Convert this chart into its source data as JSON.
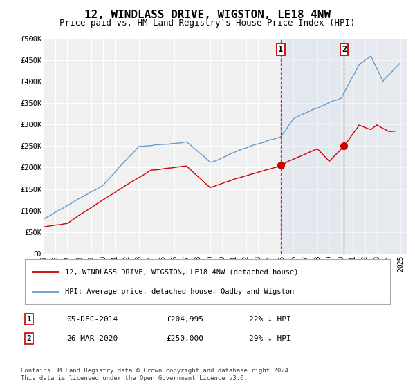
{
  "title": "12, WINDLASS DRIVE, WIGSTON, LE18 4NW",
  "subtitle": "Price paid vs. HM Land Registry's House Price Index (HPI)",
  "title_fontsize": 11.5,
  "subtitle_fontsize": 9,
  "ylabel_ticks": [
    "£0",
    "£50K",
    "£100K",
    "£150K",
    "£200K",
    "£250K",
    "£300K",
    "£350K",
    "£400K",
    "£450K",
    "£500K"
  ],
  "ytick_values": [
    0,
    50000,
    100000,
    150000,
    200000,
    250000,
    300000,
    350000,
    400000,
    450000,
    500000
  ],
  "ylim": [
    0,
    500000
  ],
  "xlim_start": 1995.0,
  "xlim_end": 2025.5,
  "hpi_color": "#6699cc",
  "price_color": "#cc0000",
  "hpi_shade_color": "#ccdaee",
  "sale1_date": 2014.92,
  "sale1_price": 204995,
  "sale2_date": 2020.24,
  "sale2_price": 250000,
  "annotation1_label": "1",
  "annotation2_label": "2",
  "legend_line1": "12, WINDLASS DRIVE, WIGSTON, LE18 4NW (detached house)",
  "legend_line2": "HPI: Average price, detached house, Oadby and Wigston",
  "note1_label": "1",
  "note1_date": "05-DEC-2014",
  "note1_price": "£204,995",
  "note1_pct": "22% ↓ HPI",
  "note2_label": "2",
  "note2_date": "26-MAR-2020",
  "note2_price": "£250,000",
  "note2_pct": "29% ↓ HPI",
  "footer": "Contains HM Land Registry data © Crown copyright and database right 2024.\nThis data is licensed under the Open Government Licence v3.0.",
  "background_color": "#ffffff",
  "plot_bg_color": "#f0f0f0"
}
